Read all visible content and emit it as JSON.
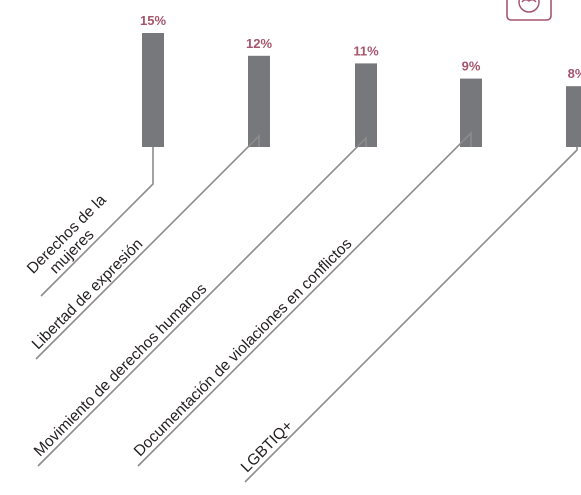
{
  "chart_data": {
    "type": "bar",
    "categories": [
      [
        "Derechos de la",
        "mujeres"
      ],
      [
        "Libertad de expresión"
      ],
      [
        "Movimiento de derechos humanos"
      ],
      [
        "Documentación de violaciones en conflictos"
      ],
      [
        "LGBTIQ+"
      ]
    ],
    "values": [
      15,
      12,
      11,
      9,
      8
    ],
    "value_labels": [
      "15%",
      "12%",
      "11%",
      "9%",
      "8%"
    ],
    "unit": "%",
    "ylim": [
      0,
      15
    ],
    "grid": false,
    "legend": "none"
  },
  "colors": {
    "bar": "#77787b",
    "value_label": "#a4566e",
    "leader_line": "#8c8c8c",
    "category_text": "#231f20",
    "icon": "#a4566e"
  },
  "icon": {
    "name": "hands-circle-icon"
  }
}
